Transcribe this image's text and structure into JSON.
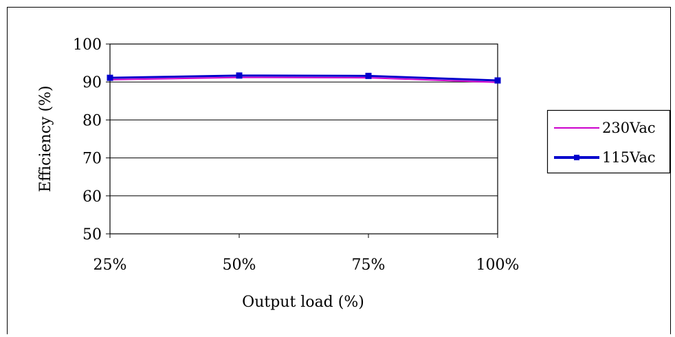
{
  "chart_data": {
    "type": "line",
    "title": "",
    "xlabel": "Output load (%)",
    "ylabel": "Efficiency (%)",
    "categories": [
      "25%",
      "50%",
      "75%",
      "100%"
    ],
    "ylim": [
      50,
      100
    ],
    "yticks": [
      50,
      60,
      70,
      80,
      90,
      100
    ],
    "grid": "horizontal",
    "legend": "right",
    "series": [
      {
        "name": "230Vac",
        "values": [
          90.6,
          91.2,
          91.1,
          89.9
        ],
        "color": "#cc00cc",
        "marker": "none"
      },
      {
        "name": "115Vac",
        "values": [
          91.1,
          91.7,
          91.6,
          90.4
        ],
        "color": "#0000cc",
        "marker": "square"
      }
    ]
  }
}
